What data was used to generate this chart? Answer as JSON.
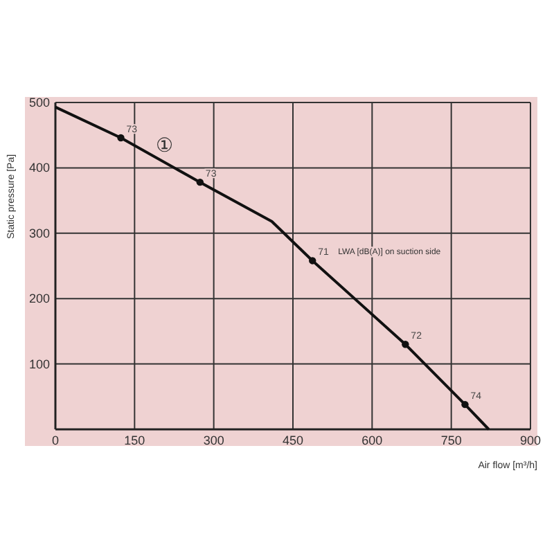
{
  "chart_data": {
    "type": "line",
    "xlabel": "Air flow [m³/h]",
    "ylabel": "Static pressure [Pa]",
    "xlim": [
      0,
      900
    ],
    "xticks": [
      0,
      150,
      300,
      450,
      600,
      750,
      900
    ],
    "ylim": [
      0,
      500
    ],
    "yticks": [
      {
        "value": 0,
        "label": null
      },
      100,
      200,
      300,
      400,
      500
    ],
    "grid": true,
    "series": [
      {
        "color": "#111111",
        "marker": "none",
        "x": [
          0,
          124,
          274,
          410,
          487,
          663,
          776,
          821
        ],
        "values": [
          493,
          446,
          378,
          318,
          258,
          130,
          38,
          0
        ]
      },
      {
        "type": "scatter",
        "color": "#111111",
        "marker": "circle",
        "x": [
          124,
          274,
          487,
          663,
          776
        ],
        "values": [
          446,
          378,
          258,
          130,
          38
        ]
      }
    ],
    "annotations": [
      "LWA [dB(A)] on suction side",
      {
        "text": "①",
        "x": 190,
        "y": 425
      },
      {
        "text": "73",
        "x": 124,
        "y": 446
      },
      {
        "text": "73",
        "x": 274,
        "y": 378
      },
      {
        "text": "71",
        "x": 487,
        "y": 258
      },
      {
        "text": "72",
        "x": 663,
        "y": 130
      },
      {
        "text": "74",
        "x": 776,
        "y": 38
      }
    ]
  }
}
